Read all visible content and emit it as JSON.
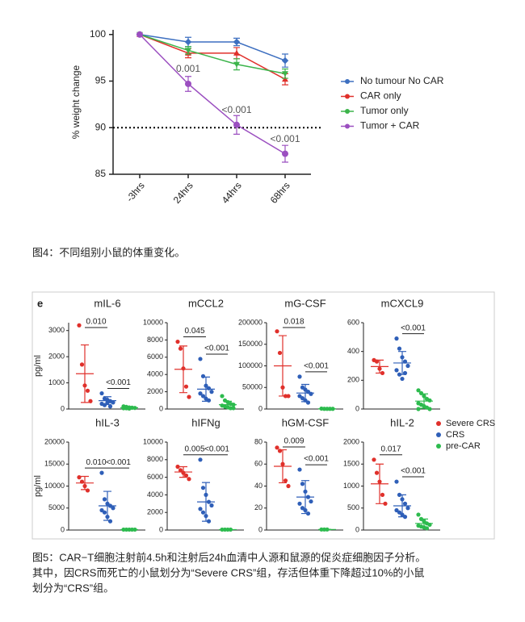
{
  "chart_data": [
    {
      "type": "line",
      "ylabel": "% weight change",
      "categories": [
        "-3hrs",
        "24hrs",
        "44hrs",
        "68hrs"
      ],
      "ylim": [
        85,
        100.5
      ],
      "yticks": [
        85,
        90,
        95,
        100
      ],
      "hline": 90,
      "legend_position": "right",
      "series": [
        {
          "name": "No tumour No CAR",
          "color": "#3d6fc0",
          "values": [
            100,
            99.2,
            99.2,
            97.2
          ],
          "errors": [
            0,
            0.5,
            0.4,
            0.7
          ]
        },
        {
          "name": "CAR only",
          "color": "#e0302b",
          "values": [
            100,
            98,
            98,
            95.2
          ],
          "errors": [
            0,
            0.5,
            0.6,
            0.6
          ]
        },
        {
          "name": "Tumor only",
          "color": "#3cb44b",
          "values": [
            100,
            98.3,
            96.8,
            95.8
          ],
          "errors": [
            0,
            0.4,
            0.6,
            0.5
          ]
        },
        {
          "name": "Tumor + CAR",
          "color": "#9b4fc0",
          "values": [
            100,
            94.7,
            90.3,
            87.2
          ],
          "errors": [
            0,
            0.8,
            1.0,
            0.9
          ]
        }
      ],
      "annotations": [
        null,
        "0.001",
        "<0.001",
        "<0.001"
      ]
    },
    {
      "type": "strip",
      "title": "mIL-6",
      "ylabel": "pg/ml",
      "ylim": [
        0,
        3300
      ],
      "yticks": [
        0,
        1000,
        2000,
        3000
      ],
      "p_left": "0.010",
      "p_right": "<0.001",
      "series": [
        {
          "color": "#e0302b",
          "values": [
            3200,
            1700,
            900,
            700,
            300
          ],
          "mean": 1350,
          "sd": 1100
        },
        {
          "color": "#2f5fb8",
          "values": [
            600,
            400,
            350,
            300,
            250,
            200,
            150,
            250,
            100
          ],
          "mean": 320,
          "sd": 150
        },
        {
          "color": "#2dbb4e",
          "values": [
            100,
            80,
            60,
            50,
            40,
            30,
            30,
            20
          ],
          "mean": 50,
          "sd": 30
        }
      ]
    },
    {
      "type": "strip",
      "title": "mCCL2",
      "ylim": [
        0,
        10000
      ],
      "yticks": [
        0,
        2000,
        4000,
        6000,
        8000,
        10000
      ],
      "p_left": "0.045",
      "p_right": "<0.001",
      "series": [
        {
          "color": "#e0302b",
          "values": [
            7800,
            7000,
            4700,
            2600,
            1400
          ],
          "mean": 4600,
          "sd": 2700
        },
        {
          "color": "#2f5fb8",
          "values": [
            5800,
            3800,
            2700,
            2400,
            2000,
            1800,
            1500,
            1200,
            1000
          ],
          "mean": 2300,
          "sd": 1400
        },
        {
          "color": "#2dbb4e",
          "values": [
            1500,
            1000,
            800,
            600,
            500,
            400,
            300,
            200,
            100,
            100
          ],
          "mean": 500,
          "sd": 400
        }
      ]
    },
    {
      "type": "strip",
      "title": "mG-CSF",
      "ylim": [
        0,
        200000
      ],
      "yticks": [
        0,
        50000,
        100000,
        150000,
        200000
      ],
      "p_left": "0.018",
      "p_right": "<0.001",
      "series": [
        {
          "color": "#e0302b",
          "values": [
            180000,
            130000,
            50000,
            30000,
            30000
          ],
          "mean": 100000,
          "sd": 70000
        },
        {
          "color": "#2f5fb8",
          "values": [
            75000,
            50000,
            45000,
            40000,
            35000,
            30000,
            25000,
            20000,
            15000
          ],
          "mean": 37000,
          "sd": 20000
        },
        {
          "color": "#2dbb4e",
          "values": [
            1000,
            500,
            500,
            500,
            500
          ],
          "mean": 500,
          "sd": 200
        }
      ]
    },
    {
      "type": "strip",
      "title": "mCXCL9",
      "ylim": [
        0,
        600
      ],
      "yticks": [
        0,
        200,
        400,
        600
      ],
      "p_left": null,
      "p_right": "<0.001",
      "series": [
        {
          "color": "#e0302b",
          "values": [
            340,
            330,
            280,
            250
          ],
          "mean": 295,
          "sd": 45
        },
        {
          "color": "#2f5fb8",
          "values": [
            490,
            420,
            360,
            330,
            300,
            270,
            240,
            210,
            250
          ],
          "mean": 320,
          "sd": 80
        },
        {
          "color": "#2dbb4e",
          "values": [
            130,
            110,
            90,
            70,
            60,
            40,
            30,
            20,
            10,
            0,
            0
          ],
          "mean": 55,
          "sd": 50
        }
      ]
    },
    {
      "type": "strip",
      "title": "hIL-3",
      "ylabel": "pg/ml",
      "ylim": [
        0,
        20000
      ],
      "yticks": [
        0,
        5000,
        10000,
        15000,
        20000
      ],
      "p_left": "0.010",
      "p_right": "<0.001",
      "series": [
        {
          "color": "#e0302b",
          "values": [
            12000,
            11000,
            10000,
            9000
          ],
          "mean": 10700,
          "sd": 1500
        },
        {
          "color": "#2f5fb8",
          "values": [
            13000,
            7000,
            6000,
            5500,
            5000,
            4500,
            4000,
            3000,
            2000
          ],
          "mean": 5500,
          "sd": 3300
        },
        {
          "color": "#2dbb4e",
          "values": [
            100,
            100,
            100,
            100,
            100
          ],
          "mean": 100,
          "sd": 50
        }
      ]
    },
    {
      "type": "strip",
      "title": "hIFNg",
      "ylim": [
        0,
        10000
      ],
      "yticks": [
        0,
        2000,
        4000,
        6000,
        8000,
        10000
      ],
      "p_left": "0.005",
      "p_right": "<0.001",
      "series": [
        {
          "color": "#e0302b",
          "values": [
            7200,
            6800,
            6500,
            6200,
            5800
          ],
          "mean": 6600,
          "sd": 600
        },
        {
          "color": "#2f5fb8",
          "values": [
            8000,
            4800,
            4000,
            3200,
            2800,
            2400,
            2000,
            1600,
            1000
          ],
          "mean": 3200,
          "sd": 2200
        },
        {
          "color": "#2dbb4e",
          "values": [
            50,
            50,
            50,
            50
          ],
          "mean": 50,
          "sd": 20
        }
      ]
    },
    {
      "type": "strip",
      "title": "hGM-CSF",
      "ylim": [
        0,
        80
      ],
      "yticks": [
        0,
        20,
        40,
        60,
        80
      ],
      "p_left": "0.009",
      "p_right": "<0.001",
      "series": [
        {
          "color": "#e0302b",
          "values": [
            75,
            72,
            60,
            45,
            40
          ],
          "mean": 58,
          "sd": 15
        },
        {
          "color": "#2f5fb8",
          "values": [
            55,
            42,
            35,
            30,
            26,
            24,
            20,
            18,
            15
          ],
          "mean": 30,
          "sd": 15
        },
        {
          "color": "#2dbb4e",
          "values": [
            0.5,
            0.5,
            0.5
          ],
          "mean": 0.5,
          "sd": 0.2
        }
      ]
    },
    {
      "type": "strip",
      "title": "hIL-2",
      "ylim": [
        0,
        2000
      ],
      "yticks": [
        0,
        500,
        1000,
        1500,
        2000
      ],
      "p_left": "0.017",
      "p_right": "<0.001",
      "series": [
        {
          "color": "#e0302b",
          "values": [
            1600,
            1300,
            1100,
            800,
            600
          ],
          "mean": 1050,
          "sd": 450
        },
        {
          "color": "#2f5fb8",
          "values": [
            1100,
            800,
            700,
            600,
            500,
            450,
            400,
            350,
            300
          ],
          "mean": 550,
          "sd": 250
        },
        {
          "color": "#2dbb4e",
          "values": [
            350,
            250,
            200,
            150,
            120,
            100,
            80,
            60,
            40
          ],
          "mean": 150,
          "sd": 100
        }
      ]
    }
  ],
  "figure4_caption": "图4：不同组别小鼠的体重变化。",
  "figure5_label": "e",
  "figure5_legend": [
    {
      "name": "Severe CRS",
      "color": "#e0302b"
    },
    {
      "name": "CRS",
      "color": "#2f5fb8"
    },
    {
      "name": "pre-CAR",
      "color": "#2dbb4e"
    }
  ],
  "figure5_caption": [
    "图5：CAR−T细胞注射前4.5h和注射后24h血清中人源和鼠源的促炎症细胞因子分析。",
    "其中，因CRS而死亡的小鼠划分为“Severe CRS”组，存活但体重下降超过10%的小鼠",
    "划分为“CRS”组。"
  ]
}
